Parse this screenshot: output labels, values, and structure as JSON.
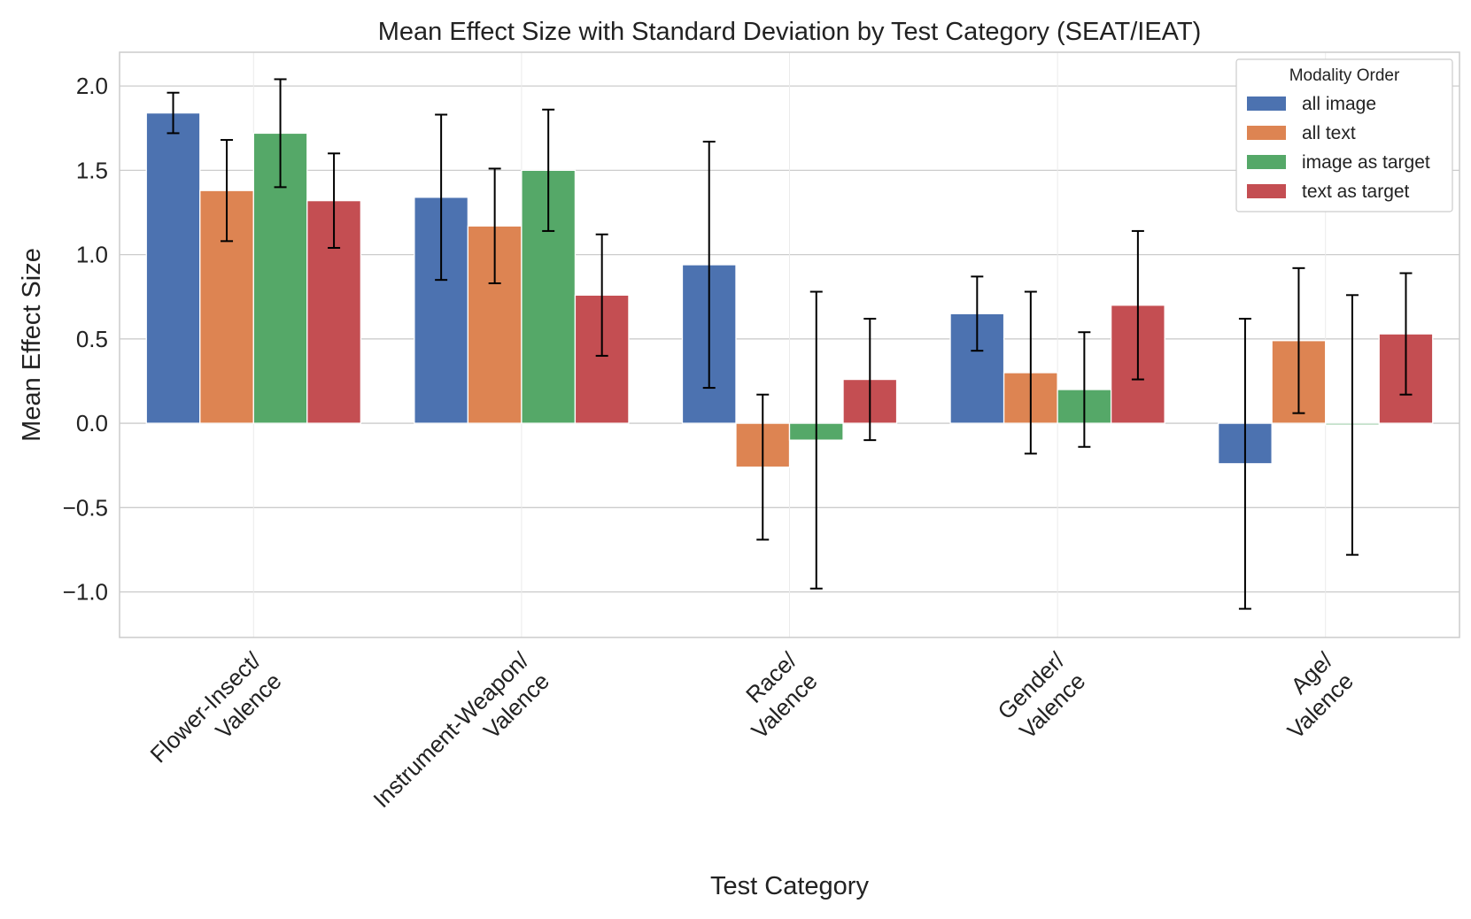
{
  "chart_data": {
    "type": "bar",
    "title": "Mean Effect Size with Standard Deviation by Test Category (SEAT/IEAT)",
    "xlabel": "Test Category",
    "ylabel": "Mean Effect Size",
    "ylim": [
      -1.27,
      2.2
    ],
    "yticks": [
      -1.0,
      -0.5,
      0.0,
      0.5,
      1.0,
      1.5,
      2.0
    ],
    "ytick_labels": [
      "−1.0",
      "−0.5",
      "0.0",
      "0.5",
      "1.0",
      "1.5",
      "2.0"
    ],
    "grid": true,
    "legend_title": "Modality Order",
    "legend_position": "top-right",
    "categories": [
      [
        "Flower-Insect/",
        "Valence"
      ],
      [
        "Instrument-Weapon/",
        "Valence"
      ],
      [
        "Race/",
        "Valence"
      ],
      [
        "Gender/",
        "Valence"
      ],
      [
        "Age/",
        "Valence"
      ]
    ],
    "series": [
      {
        "name": "all image",
        "color": "#4c72b0",
        "values": [
          1.84,
          1.34,
          0.94,
          0.65,
          -0.24
        ],
        "std": [
          0.12,
          0.49,
          0.73,
          0.22,
          0.86
        ]
      },
      {
        "name": "all text",
        "color": "#dd8452",
        "values": [
          1.38,
          1.17,
          -0.26,
          0.3,
          0.49
        ],
        "std": [
          0.3,
          0.34,
          0.43,
          0.48,
          0.43
        ]
      },
      {
        "name": "image as target",
        "color": "#55a868",
        "values": [
          1.72,
          1.5,
          -0.1,
          0.2,
          -0.01
        ],
        "std": [
          0.32,
          0.36,
          0.88,
          0.34,
          0.77
        ]
      },
      {
        "name": "text as target",
        "color": "#c44e52",
        "values": [
          1.32,
          0.76,
          0.26,
          0.7,
          0.53
        ],
        "std": [
          0.28,
          0.36,
          0.36,
          0.44,
          0.36
        ]
      }
    ]
  }
}
